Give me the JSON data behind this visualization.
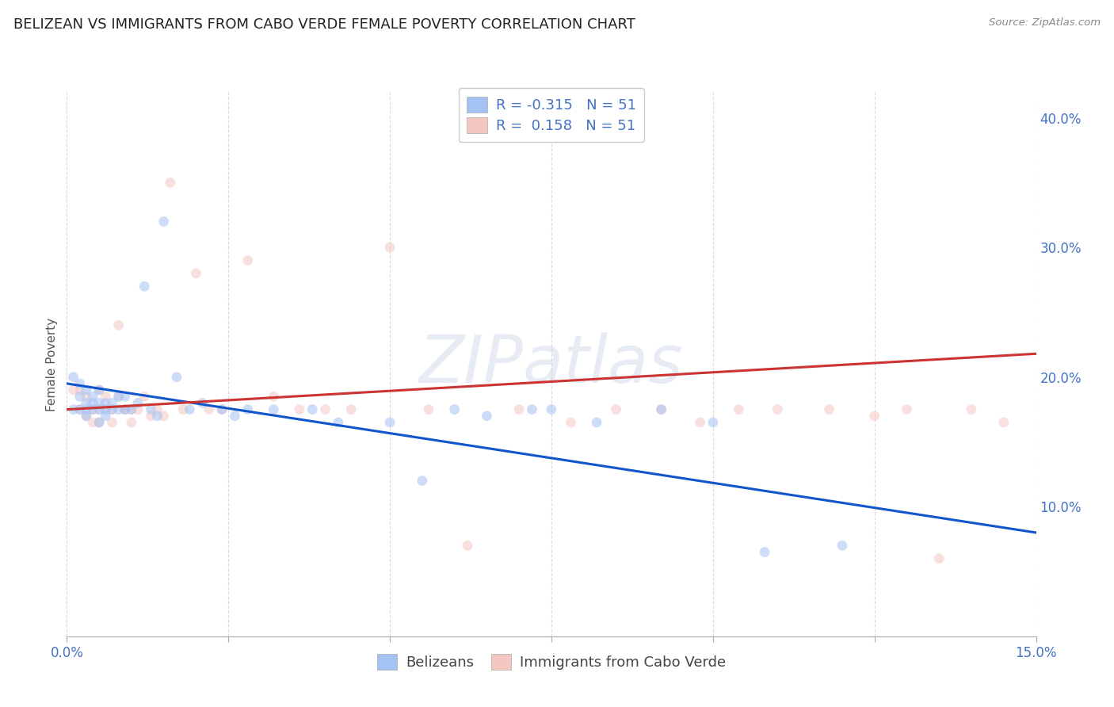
{
  "title": "BELIZEAN VS IMMIGRANTS FROM CABO VERDE FEMALE POVERTY CORRELATION CHART",
  "source_text": "Source: ZipAtlas.com",
  "ylabel": "Female Poverty",
  "series1_label": "Belizeans",
  "series2_label": "Immigrants from Cabo Verde",
  "series1_color": "#a4c2f4",
  "series2_color": "#f4c7c3",
  "series1_edge_color": "#6d9eeb",
  "series2_edge_color": "#e06666",
  "series1_line_color": "#1155cc",
  "series2_line_color": "#cc3333",
  "series1_R": "-0.315",
  "series2_R": " 0.158",
  "series1_N": "51",
  "series2_N": "51",
  "xlim": [
    0.0,
    0.15
  ],
  "ylim": [
    0.0,
    0.42
  ],
  "xticks": [
    0.0,
    0.025,
    0.05,
    0.075,
    0.1,
    0.125,
    0.15
  ],
  "xticklabels": [
    "0.0%",
    "",
    "",
    "",
    "",
    "",
    "15.0%"
  ],
  "yticks_right": [
    0.0,
    0.1,
    0.2,
    0.3,
    0.4
  ],
  "yticklabels_right": [
    "",
    "10.0%",
    "20.0%",
    "30.0%",
    "40.0%"
  ],
  "background_color": "#ffffff",
  "grid_color": "#cccccc",
  "watermark_text": "ZIPatlas",
  "series1_x": [
    0.001,
    0.001,
    0.002,
    0.002,
    0.002,
    0.003,
    0.003,
    0.003,
    0.003,
    0.004,
    0.004,
    0.004,
    0.005,
    0.005,
    0.005,
    0.005,
    0.006,
    0.006,
    0.006,
    0.007,
    0.007,
    0.008,
    0.008,
    0.009,
    0.009,
    0.01,
    0.011,
    0.012,
    0.013,
    0.014,
    0.015,
    0.017,
    0.019,
    0.021,
    0.024,
    0.026,
    0.028,
    0.032,
    0.038,
    0.042,
    0.05,
    0.055,
    0.06,
    0.065,
    0.072,
    0.075,
    0.082,
    0.092,
    0.1,
    0.108,
    0.12
  ],
  "series1_y": [
    0.2,
    0.175,
    0.195,
    0.185,
    0.175,
    0.19,
    0.18,
    0.175,
    0.17,
    0.185,
    0.175,
    0.18,
    0.19,
    0.18,
    0.175,
    0.165,
    0.18,
    0.175,
    0.17,
    0.18,
    0.175,
    0.185,
    0.175,
    0.185,
    0.175,
    0.175,
    0.18,
    0.27,
    0.175,
    0.17,
    0.32,
    0.2,
    0.175,
    0.18,
    0.175,
    0.17,
    0.175,
    0.175,
    0.175,
    0.165,
    0.165,
    0.12,
    0.175,
    0.17,
    0.175,
    0.175,
    0.165,
    0.175,
    0.165,
    0.065,
    0.07
  ],
  "series2_x": [
    0.001,
    0.002,
    0.002,
    0.003,
    0.003,
    0.004,
    0.004,
    0.005,
    0.005,
    0.005,
    0.006,
    0.006,
    0.007,
    0.007,
    0.008,
    0.008,
    0.009,
    0.009,
    0.01,
    0.01,
    0.011,
    0.012,
    0.013,
    0.014,
    0.015,
    0.016,
    0.018,
    0.02,
    0.022,
    0.024,
    0.028,
    0.032,
    0.036,
    0.04,
    0.044,
    0.05,
    0.056,
    0.062,
    0.07,
    0.078,
    0.085,
    0.092,
    0.098,
    0.104,
    0.11,
    0.118,
    0.125,
    0.13,
    0.135,
    0.14,
    0.145
  ],
  "series2_y": [
    0.19,
    0.19,
    0.175,
    0.185,
    0.17,
    0.175,
    0.165,
    0.19,
    0.175,
    0.165,
    0.185,
    0.175,
    0.175,
    0.165,
    0.185,
    0.24,
    0.175,
    0.175,
    0.175,
    0.165,
    0.175,
    0.185,
    0.17,
    0.175,
    0.17,
    0.35,
    0.175,
    0.28,
    0.175,
    0.175,
    0.29,
    0.185,
    0.175,
    0.175,
    0.175,
    0.3,
    0.175,
    0.07,
    0.175,
    0.165,
    0.175,
    0.175,
    0.165,
    0.175,
    0.175,
    0.175,
    0.17,
    0.175,
    0.06,
    0.175,
    0.165
  ],
  "trend1_x": [
    0.0,
    0.15
  ],
  "trend1_y": [
    0.195,
    0.08
  ],
  "trend2_x": [
    0.0,
    0.15
  ],
  "trend2_y": [
    0.175,
    0.218
  ],
  "marker_size": 85,
  "marker_alpha": 0.55,
  "title_fontsize": 13,
  "axis_label_fontsize": 11,
  "tick_fontsize": 12,
  "legend_fontsize": 13
}
